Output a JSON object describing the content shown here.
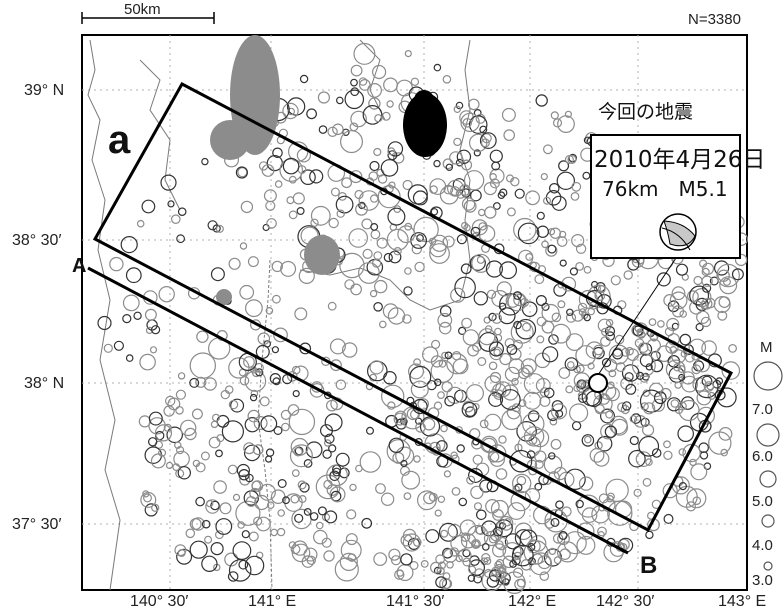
{
  "map": {
    "count_label": "N=3380",
    "scale_label": "50km",
    "lat_labels": [
      "39° N",
      "38° 30′",
      "38° N",
      "37° 30′"
    ],
    "lon_labels": [
      "140° 30′",
      "141° E",
      "141° 30′",
      "142° E",
      "142° 30′",
      "143° E"
    ],
    "region_label": "a",
    "section_start_label": "A",
    "section_end_label": "B"
  },
  "callout": {
    "heading": "今回の地震",
    "date": "2010年4月26日",
    "depth_mag": "76km　M5.1"
  },
  "legend": {
    "title": "M",
    "items": [
      "7.0",
      "6.0",
      "5.0",
      "4.0",
      "3.0"
    ]
  },
  "colors": {
    "frame": "#000000",
    "grid": "#b0b0b0",
    "coast": "#7a7a7a",
    "quake_gray": "#8c8c8c",
    "quake_dark": "#333333",
    "cluster_black": "#000000"
  }
}
